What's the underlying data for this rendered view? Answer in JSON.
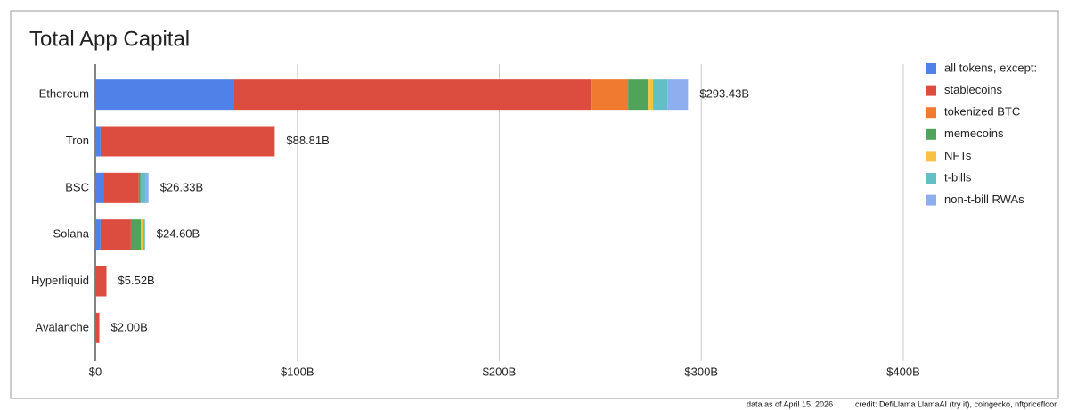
{
  "chart_data": {
    "type": "stacked_bar_horizontal",
    "title": "Total App Capital",
    "categories": [
      "Ethereum",
      "Tron",
      "BSC",
      "Solana",
      "Hyperliquid",
      "Avalanche"
    ],
    "series": [
      {
        "name": "all tokens, except:",
        "color": "#4f81e8",
        "values": [
          68.4,
          2.6,
          4.0,
          2.6,
          0,
          0
        ]
      },
      {
        "name": "stablecoins",
        "color": "#dc4c3f",
        "values": [
          176.9,
          86.21,
          17.53,
          15.0,
          5.52,
          2.0
        ]
      },
      {
        "name": "tokenized BTC",
        "color": "#ef7a30",
        "values": [
          18.5,
          0,
          0,
          0,
          0,
          0
        ]
      },
      {
        "name": "memecoins",
        "color": "#4fa35a",
        "values": [
          9.7,
          0,
          0.9,
          4.9,
          0,
          0
        ]
      },
      {
        "name": "NFTs",
        "color": "#f5c242",
        "values": [
          2.6,
          0,
          0,
          0.9,
          0,
          0
        ]
      },
      {
        "name": "t-bills",
        "color": "#62bfc6",
        "values": [
          7.1,
          0,
          2.6,
          1.2,
          0,
          0
        ]
      },
      {
        "name": "non-t-bill RWAs",
        "color": "#8eaef0",
        "values": [
          10.23,
          0,
          1.3,
          0,
          0,
          0
        ]
      }
    ],
    "totals": {
      "values": [
        293.43,
        88.81,
        26.33,
        24.6,
        5.52,
        2.0
      ],
      "value_labels": [
        "$293.43B",
        "$88.81B",
        "$26.33B",
        "$24.60B",
        "$5.52B",
        "$2.00B"
      ]
    },
    "xlim": [
      0,
      400
    ],
    "xticks": [
      {
        "value": 0,
        "label": "$0"
      },
      {
        "value": 100,
        "label": "$100B"
      },
      {
        "value": 200,
        "label": "$200B"
      },
      {
        "value": 300,
        "label": "$300B"
      },
      {
        "value": 400,
        "label": "$400B"
      }
    ],
    "grid": true,
    "legend": "right",
    "footer": {
      "date": "data as of April 15, 2026",
      "credit": "credit: DefiLlama LlamaAI (try it), coingecko, nftpricefloor"
    }
  }
}
